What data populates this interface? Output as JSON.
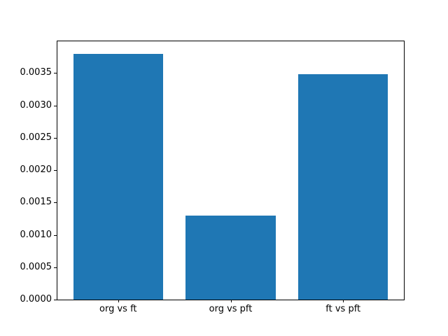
{
  "figure": {
    "background_color": "#ffffff",
    "bar_color": "#1f77b4",
    "spine_color": "#000000",
    "tick_color": "#000000",
    "label_color": "#000000"
  },
  "chart_data": {
    "type": "bar",
    "title": "",
    "xlabel": "",
    "ylabel": "",
    "categories": [
      "org vs ft",
      "org vs pft",
      "ft vs pft"
    ],
    "values": [
      0.0038,
      0.0013,
      0.00348
    ],
    "bar_width": 0.8,
    "xlim": [
      -0.54,
      2.54
    ],
    "ylim": [
      0,
      0.00399
    ],
    "yticks": [
      0.0,
      0.0005,
      0.001,
      0.0015,
      0.002,
      0.0025,
      0.003,
      0.0035
    ],
    "ytick_labels": [
      "0.0000",
      "0.0005",
      "0.0010",
      "0.0015",
      "0.0020",
      "0.0025",
      "0.0030",
      "0.0035"
    ],
    "grid": false,
    "legend": null
  }
}
